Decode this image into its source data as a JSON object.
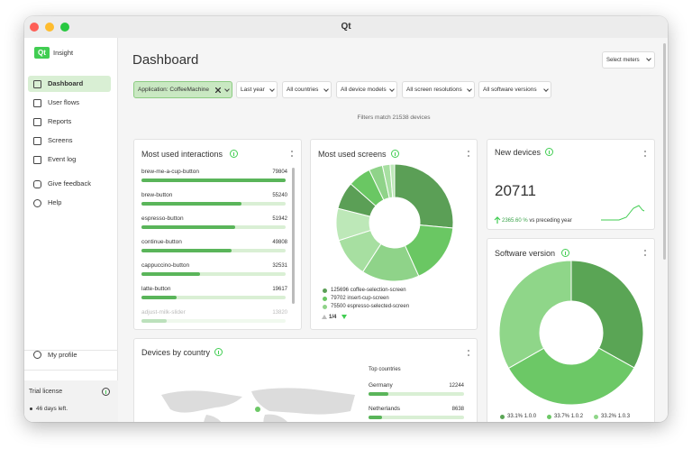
{
  "window": {
    "title": "Qt"
  },
  "sidebar": {
    "logo": "Qt",
    "app_name": "Insight",
    "nav": [
      "Dashboard",
      "User flows",
      "Reports",
      "Screens",
      "Event log",
      "Give feedback",
      "Help"
    ],
    "profile": "My profile",
    "license": {
      "title": "Trial license",
      "text": "46 days left."
    }
  },
  "header": {
    "title": "Dashboard",
    "select": "Select meters"
  },
  "filters": {
    "chips": [
      "Application: CoffeeMachine",
      "Last year",
      "All countries",
      "All device models",
      "All screen resolutions",
      "All software versions"
    ],
    "status": "Filters match 21538 devices"
  },
  "interactions": {
    "title": "Most used interactions",
    "items": [
      {
        "label": "brew-me-a-cup-button",
        "value": 79804
      },
      {
        "label": "brew-button",
        "value": 55240
      },
      {
        "label": "espresso-button",
        "value": 51942
      },
      {
        "label": "continue-button",
        "value": 49808
      },
      {
        "label": "cappuccino-button",
        "value": 32531
      },
      {
        "label": "latte-button",
        "value": 19617
      },
      {
        "label": "adjust-milk-slider",
        "value": 13820
      }
    ]
  },
  "screens": {
    "title": "Most used screens",
    "segments": [
      125696,
      79702,
      75500,
      52000,
      42000,
      36000,
      30000,
      18000,
      10000,
      6000
    ],
    "colors": [
      "#5b9f56",
      "#6ac763",
      "#8fd389",
      "#a7dfa1",
      "#bde8b8",
      "#5b9f56",
      "#6ac763",
      "#8fd389",
      "#a7dfa1",
      "#bde8b8"
    ],
    "legend": [
      "coffee-selection-screen",
      "insert-cup-screen",
      "espresso-selected-screen"
    ],
    "pager": "1/4"
  },
  "new_devices": {
    "title": "New devices",
    "value": "20711",
    "change": "2365.60 %",
    "change_text": "vs preceding year"
  },
  "software": {
    "title": "Software version",
    "values": [
      33.1,
      33.7,
      33.2
    ],
    "value_labels": [
      "33.1%",
      "33.7%",
      "33.2%"
    ],
    "labels": [
      "1.0.0",
      "1.0.2",
      "1.0.3"
    ],
    "colors": [
      "#5aa555",
      "#6cc866",
      "#8fd689"
    ]
  },
  "countries": {
    "title": "Devices by country",
    "top_title": "Top countries",
    "items": [
      {
        "label": "Germany",
        "value": 12244
      },
      {
        "label": "Netherlands",
        "value": 8638
      }
    ]
  }
}
